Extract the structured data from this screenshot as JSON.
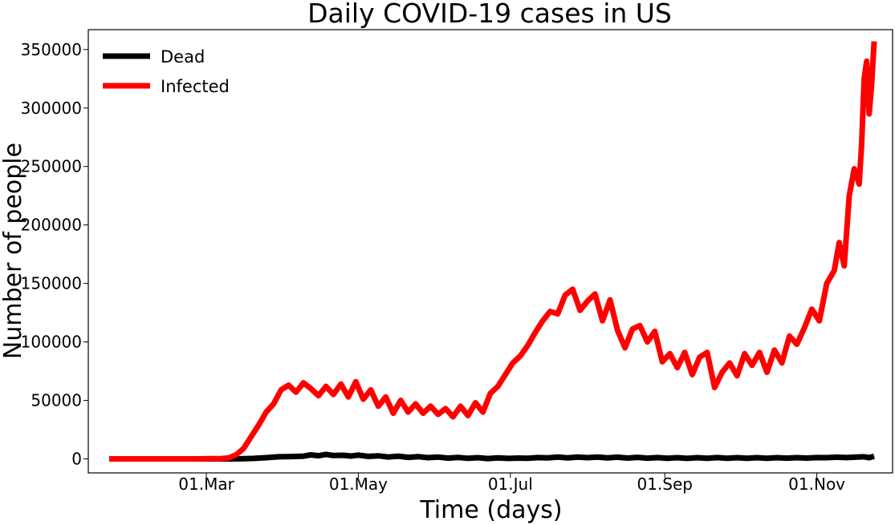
{
  "chart_data": {
    "type": "line",
    "title": "Daily COVID-19 cases in US",
    "xlabel": "Time (days)",
    "ylabel": "Number of people",
    "x_range": [
      "2020-01-22",
      "2020-11-24"
    ],
    "ylim": [
      -12000,
      367000
    ],
    "y_ticks": [
      0,
      50000,
      100000,
      150000,
      200000,
      250000,
      300000,
      350000
    ],
    "y_tick_labels": [
      "0",
      "50000",
      "100000",
      "150000",
      "200000",
      "250000",
      "300000",
      "350000"
    ],
    "x_ticks": [
      "2020-03-01",
      "2020-05-01",
      "2020-07-01",
      "2020-09-01",
      "2020-11-01"
    ],
    "x_tick_labels": [
      "01.Mar",
      "01.May",
      "01.Jul",
      "01.Sep",
      "01.Nov"
    ],
    "legend_position": "top-left",
    "grid": false,
    "series": [
      {
        "name": "Dead",
        "color": "#000000",
        "points": [
          [
            "2020-01-22",
            0
          ],
          [
            "2020-02-29",
            0
          ],
          [
            "2020-03-10",
            20
          ],
          [
            "2020-03-15",
            60
          ],
          [
            "2020-03-20",
            400
          ],
          [
            "2020-03-25",
            1000
          ],
          [
            "2020-03-30",
            1800
          ],
          [
            "2020-04-04",
            2000
          ],
          [
            "2020-04-09",
            2300
          ],
          [
            "2020-04-12",
            3400
          ],
          [
            "2020-04-15",
            2700
          ],
          [
            "2020-04-18",
            3800
          ],
          [
            "2020-04-21",
            2900
          ],
          [
            "2020-04-25",
            3100
          ],
          [
            "2020-04-28",
            2400
          ],
          [
            "2020-05-01",
            3200
          ],
          [
            "2020-05-05",
            2100
          ],
          [
            "2020-05-09",
            2600
          ],
          [
            "2020-05-13",
            1600
          ],
          [
            "2020-05-17",
            2300
          ],
          [
            "2020-05-21",
            1300
          ],
          [
            "2020-05-25",
            1900
          ],
          [
            "2020-05-29",
            1000
          ],
          [
            "2020-06-02",
            1500
          ],
          [
            "2020-06-06",
            700
          ],
          [
            "2020-06-10",
            1200
          ],
          [
            "2020-06-14",
            500
          ],
          [
            "2020-06-18",
            1000
          ],
          [
            "2020-06-22",
            300
          ],
          [
            "2020-06-26",
            900
          ],
          [
            "2020-06-30",
            400
          ],
          [
            "2020-07-04",
            700
          ],
          [
            "2020-07-08",
            500
          ],
          [
            "2020-07-12",
            1100
          ],
          [
            "2020-07-16",
            800
          ],
          [
            "2020-07-20",
            1500
          ],
          [
            "2020-07-24",
            900
          ],
          [
            "2020-07-28",
            1600
          ],
          [
            "2020-08-01",
            1000
          ],
          [
            "2020-08-05",
            1500
          ],
          [
            "2020-08-09",
            800
          ],
          [
            "2020-08-13",
            1400
          ],
          [
            "2020-08-17",
            700
          ],
          [
            "2020-08-21",
            1300
          ],
          [
            "2020-08-25",
            600
          ],
          [
            "2020-08-29",
            1100
          ],
          [
            "2020-09-02",
            500
          ],
          [
            "2020-09-06",
            1000
          ],
          [
            "2020-09-10",
            400
          ],
          [
            "2020-09-14",
            1000
          ],
          [
            "2020-09-18",
            500
          ],
          [
            "2020-09-22",
            1100
          ],
          [
            "2020-09-26",
            500
          ],
          [
            "2020-09-30",
            1000
          ],
          [
            "2020-10-04",
            500
          ],
          [
            "2020-10-08",
            1000
          ],
          [
            "2020-10-12",
            500
          ],
          [
            "2020-10-16",
            1000
          ],
          [
            "2020-10-20",
            600
          ],
          [
            "2020-10-24",
            1000
          ],
          [
            "2020-10-28",
            700
          ],
          [
            "2020-11-01",
            1100
          ],
          [
            "2020-11-05",
            1000
          ],
          [
            "2020-11-09",
            1400
          ],
          [
            "2020-11-13",
            1100
          ],
          [
            "2020-11-17",
            1500
          ],
          [
            "2020-11-20",
            1800
          ],
          [
            "2020-11-22",
            1000
          ],
          [
            "2020-11-24",
            2200
          ]
        ]
      },
      {
        "name": "Infected",
        "color": "#ff0000",
        "points": [
          [
            "2020-01-22",
            0
          ],
          [
            "2020-02-25",
            0
          ],
          [
            "2020-03-02",
            100
          ],
          [
            "2020-03-07",
            300
          ],
          [
            "2020-03-10",
            800
          ],
          [
            "2020-03-13",
            3500
          ],
          [
            "2020-03-16",
            9000
          ],
          [
            "2020-03-19",
            19000
          ],
          [
            "2020-03-22",
            29000
          ],
          [
            "2020-03-25",
            40000
          ],
          [
            "2020-03-28",
            47000
          ],
          [
            "2020-03-31",
            59000
          ],
          [
            "2020-04-03",
            63000
          ],
          [
            "2020-04-06",
            57000
          ],
          [
            "2020-04-09",
            65000
          ],
          [
            "2020-04-12",
            60000
          ],
          [
            "2020-04-15",
            54000
          ],
          [
            "2020-04-18",
            62000
          ],
          [
            "2020-04-21",
            55000
          ],
          [
            "2020-04-24",
            64000
          ],
          [
            "2020-04-27",
            53000
          ],
          [
            "2020-04-30",
            66000
          ],
          [
            "2020-05-03",
            51000
          ],
          [
            "2020-05-06",
            59000
          ],
          [
            "2020-05-09",
            45000
          ],
          [
            "2020-05-12",
            53000
          ],
          [
            "2020-05-15",
            39000
          ],
          [
            "2020-05-18",
            50000
          ],
          [
            "2020-05-21",
            40000
          ],
          [
            "2020-05-24",
            47000
          ],
          [
            "2020-05-27",
            39000
          ],
          [
            "2020-05-30",
            45000
          ],
          [
            "2020-06-02",
            38000
          ],
          [
            "2020-06-05",
            43000
          ],
          [
            "2020-06-08",
            36000
          ],
          [
            "2020-06-11",
            45000
          ],
          [
            "2020-06-14",
            37000
          ],
          [
            "2020-06-17",
            48000
          ],
          [
            "2020-06-20",
            40000
          ],
          [
            "2020-06-23",
            56000
          ],
          [
            "2020-06-26",
            62000
          ],
          [
            "2020-06-29",
            72000
          ],
          [
            "2020-07-02",
            82000
          ],
          [
            "2020-07-05",
            88000
          ],
          [
            "2020-07-08",
            97000
          ],
          [
            "2020-07-11",
            108000
          ],
          [
            "2020-07-14",
            118000
          ],
          [
            "2020-07-17",
            126000
          ],
          [
            "2020-07-20",
            124000
          ],
          [
            "2020-07-23",
            140000
          ],
          [
            "2020-07-26",
            145000
          ],
          [
            "2020-07-29",
            127000
          ],
          [
            "2020-08-01",
            135000
          ],
          [
            "2020-08-04",
            141000
          ],
          [
            "2020-08-07",
            118000
          ],
          [
            "2020-08-10",
            136000
          ],
          [
            "2020-08-13",
            110000
          ],
          [
            "2020-08-16",
            95000
          ],
          [
            "2020-08-19",
            111000
          ],
          [
            "2020-08-22",
            114000
          ],
          [
            "2020-08-25",
            100000
          ],
          [
            "2020-08-28",
            109000
          ],
          [
            "2020-08-31",
            83000
          ],
          [
            "2020-09-03",
            90000
          ],
          [
            "2020-09-06",
            78000
          ],
          [
            "2020-09-09",
            91000
          ],
          [
            "2020-09-12",
            72000
          ],
          [
            "2020-09-15",
            87000
          ],
          [
            "2020-09-18",
            91000
          ],
          [
            "2020-09-21",
            61000
          ],
          [
            "2020-09-24",
            74000
          ],
          [
            "2020-09-27",
            82000
          ],
          [
            "2020-09-30",
            71000
          ],
          [
            "2020-10-03",
            90000
          ],
          [
            "2020-10-06",
            80000
          ],
          [
            "2020-10-09",
            91000
          ],
          [
            "2020-10-12",
            74000
          ],
          [
            "2020-10-15",
            93000
          ],
          [
            "2020-10-18",
            82000
          ],
          [
            "2020-10-21",
            105000
          ],
          [
            "2020-10-24",
            98000
          ],
          [
            "2020-10-27",
            112000
          ],
          [
            "2020-10-30",
            128000
          ],
          [
            "2020-11-02",
            118000
          ],
          [
            "2020-11-05",
            150000
          ],
          [
            "2020-11-08",
            161000
          ],
          [
            "2020-11-10",
            185000
          ],
          [
            "2020-11-12",
            165000
          ],
          [
            "2020-11-14",
            225000
          ],
          [
            "2020-11-16",
            248000
          ],
          [
            "2020-11-18",
            235000
          ],
          [
            "2020-11-19",
            270000
          ],
          [
            "2020-11-20",
            325000
          ],
          [
            "2020-11-21",
            340000
          ],
          [
            "2020-11-22",
            295000
          ],
          [
            "2020-11-23",
            320000
          ],
          [
            "2020-11-24",
            357000
          ]
        ]
      }
    ]
  }
}
